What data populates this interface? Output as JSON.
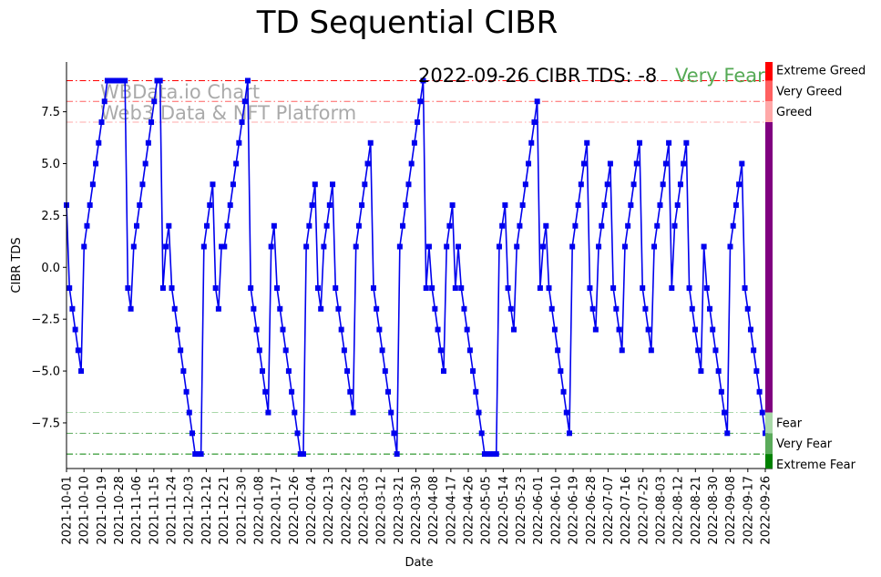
{
  "chart_data": {
    "type": "line",
    "title": "TD Sequential CIBR",
    "xlabel": "Date",
    "ylabel": "CIBR TDS",
    "ylim": [
      -9.7,
      9.9
    ],
    "yticks": [
      -7.5,
      -5.0,
      -2.5,
      0.0,
      2.5,
      5.0,
      7.5
    ],
    "ytick_labels": [
      "−7.5",
      "−5.0",
      "−2.5",
      "0.0",
      "2.5",
      "5.0",
      "7.5"
    ],
    "x_start": "2021-10-01",
    "x_end": "2022-09-26",
    "x_tick_labels": [
      "2021-10-01",
      "2021-10-10",
      "2021-10-19",
      "2021-10-28",
      "2021-11-06",
      "2021-11-15",
      "2021-11-24",
      "2021-12-03",
      "2021-12-12",
      "2021-12-21",
      "2021-12-30",
      "2022-01-08",
      "2022-01-17",
      "2022-01-26",
      "2022-02-04",
      "2022-02-13",
      "2022-02-22",
      "2022-03-03",
      "2022-03-12",
      "2022-03-21",
      "2022-03-30",
      "2022-04-08",
      "2022-04-17",
      "2022-04-26",
      "2022-05-05",
      "2022-05-14",
      "2022-05-23",
      "2022-06-01",
      "2022-06-10",
      "2022-06-19",
      "2022-06-28",
      "2022-07-07",
      "2022-07-16",
      "2022-07-25",
      "2022-08-03",
      "2022-08-12",
      "2022-08-21",
      "2022-08-30",
      "2022-09-08",
      "2022-09-17",
      "2022-09-26"
    ],
    "series": [
      {
        "name": "CIBR TDS",
        "color": "#0000ee",
        "values": [
          3,
          -1,
          -2,
          -3,
          -4,
          -5,
          1,
          2,
          3,
          4,
          5,
          6,
          7,
          8,
          9,
          9,
          9,
          9,
          9,
          9,
          9,
          -1,
          -2,
          1,
          2,
          3,
          4,
          5,
          6,
          7,
          8,
          9,
          9,
          -1,
          1,
          2,
          -1,
          -2,
          -3,
          -4,
          -5,
          -6,
          -7,
          -8,
          -9,
          -9,
          -9,
          1,
          2,
          3,
          4,
          -1,
          -2,
          1,
          1,
          2,
          3,
          4,
          5,
          6,
          7,
          8,
          9,
          -1,
          -2,
          -3,
          -4,
          -5,
          -6,
          -7,
          1,
          2,
          -1,
          -2,
          -3,
          -4,
          -5,
          -6,
          -7,
          -8,
          -9,
          -9,
          1,
          2,
          3,
          4,
          -1,
          -2,
          1,
          2,
          3,
          4,
          -1,
          -2,
          -3,
          -4,
          -5,
          -6,
          -7,
          1,
          2,
          3,
          4,
          5,
          6,
          -1,
          -2,
          -3,
          -4,
          -5,
          -6,
          -7,
          -8,
          -9,
          1,
          2,
          3,
          4,
          5,
          6,
          7,
          8,
          9,
          -1,
          1,
          -1,
          -2,
          -3,
          -4,
          -5,
          1,
          2,
          3,
          -1,
          1,
          -1,
          -2,
          -3,
          -4,
          -5,
          -6,
          -7,
          -8,
          -9,
          -9,
          -9,
          -9,
          -9,
          1,
          2,
          3,
          -1,
          -2,
          -3,
          1,
          2,
          3,
          4,
          5,
          6,
          7,
          8,
          -1,
          1,
          2,
          -1,
          -2,
          -3,
          -4,
          -5,
          -6,
          -7,
          -8,
          1,
          2,
          3,
          4,
          5,
          6,
          -1,
          -2,
          -3,
          1,
          2,
          3,
          4,
          5,
          -1,
          -2,
          -3,
          -4,
          1,
          2,
          3,
          4,
          5,
          6,
          -1,
          -2,
          -3,
          -4,
          1,
          2,
          3,
          4,
          5,
          6,
          -1,
          2,
          3,
          4,
          5,
          6,
          -1,
          -2,
          -3,
          -4,
          -5,
          1,
          -1,
          -2,
          -3,
          -4,
          -5,
          -6,
          -7,
          -8,
          1,
          2,
          3,
          4,
          5,
          -1,
          -2,
          -3,
          -4,
          -5,
          -6,
          -7,
          -8
        ]
      }
    ],
    "reference_lines": [
      {
        "name": "Extreme Greed",
        "value": 9,
        "color": "#ff0000",
        "opacity": 1.0
      },
      {
        "name": "Very Greed",
        "value": 8,
        "color": "#ff6060",
        "opacity": 1.0
      },
      {
        "name": "Greed",
        "value": 7,
        "color": "#ffa8a8",
        "opacity": 1.0
      },
      {
        "name": "Fear",
        "value": -7,
        "color": "#a8d8a8",
        "opacity": 1.0
      },
      {
        "name": "Very Fear",
        "value": -8,
        "color": "#5aaa5a",
        "opacity": 1.0
      },
      {
        "name": "Extreme Fear",
        "value": -9,
        "color": "#008000",
        "opacity": 1.0
      }
    ],
    "side_bar": [
      {
        "from": 9,
        "to": 9.9,
        "color": "#ff0000"
      },
      {
        "from": 8,
        "to": 9,
        "color": "#ff6060"
      },
      {
        "from": 7,
        "to": 8,
        "color": "#ffa8a8"
      },
      {
        "from": -7,
        "to": 7,
        "color": "#800080"
      },
      {
        "from": -8,
        "to": -7,
        "color": "#a8d8a8"
      },
      {
        "from": -9,
        "to": -8,
        "color": "#5aaa5a"
      },
      {
        "from": -9.7,
        "to": -9,
        "color": "#008000"
      }
    ],
    "side_labels": [
      {
        "text": "Extreme Greed",
        "value": 9.5,
        "color": "#ff0000"
      },
      {
        "text": "Very Greed",
        "value": 8.5,
        "color": "#ff6060"
      },
      {
        "text": "Greed",
        "value": 7.5,
        "color": "#ffa8a8"
      },
      {
        "text": "Fear",
        "value": -7.5,
        "color": "#a8d8a8"
      },
      {
        "text": "Very Fear",
        "value": -8.5,
        "color": "#5aaa5a"
      },
      {
        "text": "Extreme Fear",
        "value": -9.5,
        "color": "#008000"
      }
    ],
    "annotations": {
      "status": "2022-09-26 CIBR TDS: -8",
      "sentiment": "Very Fear",
      "sentiment_color": "#55aa55",
      "watermark_line1": "WBData.io Chart",
      "watermark_line2": "Web3 Data & NFT Platform",
      "watermark_color": "#aaaaaa"
    }
  }
}
